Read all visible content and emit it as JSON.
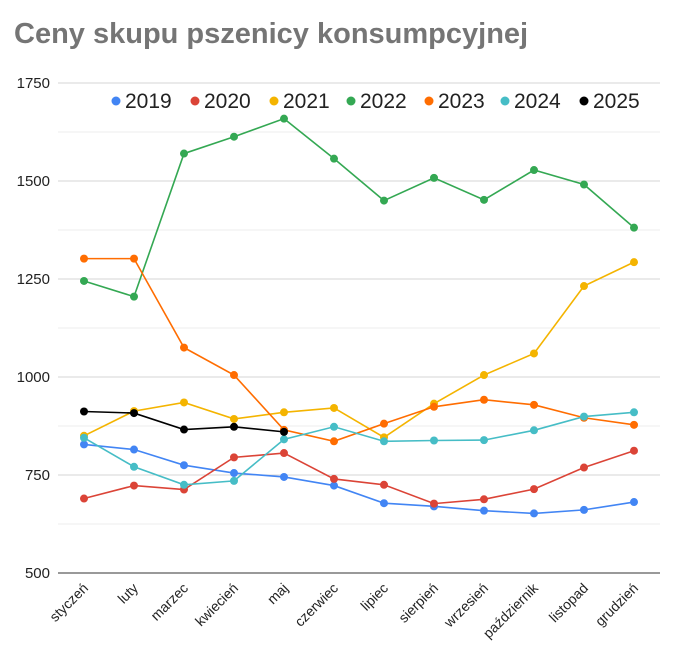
{
  "chart_data": {
    "type": "line",
    "title": "Ceny skupu pszenicy konsumpcyjnej",
    "xlabel": "",
    "ylabel": "",
    "ylim": [
      500,
      1750
    ],
    "yticks": [
      500,
      750,
      1000,
      1250,
      1500,
      1750
    ],
    "grid": true,
    "legend_position": "top",
    "categories": [
      "styczeń",
      "luty",
      "marzec",
      "kwiecień",
      "maj",
      "czerwiec",
      "lipiec",
      "sierpień",
      "wrzesień",
      "październik",
      "listopad",
      "grudzień"
    ],
    "series": [
      {
        "name": "2019",
        "color": "#4285F4",
        "values": [
          828,
          815,
          775,
          755,
          745,
          723,
          678,
          670,
          659,
          652,
          661,
          681
        ]
      },
      {
        "name": "2020",
        "color": "#DB4437",
        "values": [
          690,
          723,
          713,
          795,
          806,
          740,
          725,
          677,
          688,
          714,
          769,
          812
        ]
      },
      {
        "name": "2021",
        "color": "#F4B400",
        "values": [
          850,
          913,
          935,
          893,
          910,
          921,
          846,
          932,
          1005,
          1060,
          1232,
          1293
        ]
      },
      {
        "name": "2022",
        "color": "#34A853",
        "values": [
          1245,
          1205,
          1570,
          1613,
          1659,
          1557,
          1450,
          1508,
          1452,
          1528,
          1491,
          1381
        ]
      },
      {
        "name": "2023",
        "color": "#FF6D01",
        "values": [
          1302,
          1302,
          1075,
          1005,
          865,
          836,
          881,
          924,
          942,
          929,
          896,
          878
        ]
      },
      {
        "name": "2024",
        "color": "#46BDC6",
        "values": [
          845,
          771,
          725,
          735,
          841,
          873,
          836,
          838,
          839,
          864,
          899,
          910
        ]
      },
      {
        "name": "2025",
        "color": "#000000",
        "values": [
          912,
          908,
          866,
          873,
          860,
          null,
          null,
          null,
          null,
          null,
          null,
          null
        ]
      }
    ]
  }
}
